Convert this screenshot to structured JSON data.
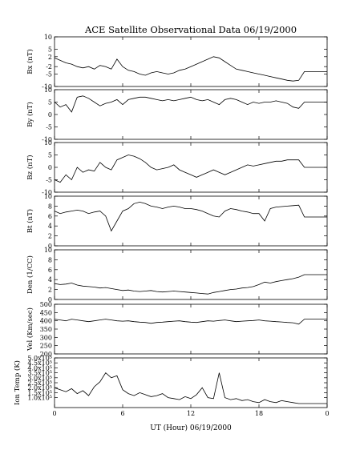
{
  "chart_data": {
    "type": "line",
    "title": "ACE Satellite Observational Data   06/19/2000",
    "xlabel": "UT (Hour)   06/19/2000",
    "x_ticks": [
      "0",
      "6",
      "12",
      "18",
      "0"
    ],
    "xlim": [
      0,
      24
    ],
    "grid": false,
    "panels": [
      {
        "ylabel": "Bx (nT)",
        "ylim": [
          -10,
          10
        ],
        "y_ticks": [
          "-10",
          "-5",
          "-2",
          "2",
          "5",
          "10"
        ],
        "y_tick_values": [
          -10,
          -5,
          -2,
          2,
          5,
          10
        ],
        "series": {
          "x": [
            0,
            0.5,
            1,
            1.5,
            2,
            2.5,
            3,
            3.5,
            4,
            4.5,
            5,
            5.5,
            6,
            6.5,
            7,
            7.5,
            8,
            8.5,
            9,
            9.5,
            10,
            10.5,
            11,
            11.5,
            12,
            12.5,
            13,
            13.5,
            14,
            14.5,
            15,
            15.5,
            16,
            16.5,
            17,
            17.5,
            18,
            18.5,
            19,
            19.5,
            20,
            20.5,
            21,
            21.5,
            22,
            22.5,
            23,
            23.5,
            24
          ],
          "y": [
            1.5,
            0.5,
            -0.5,
            -1,
            -2,
            -2.5,
            -2,
            -3,
            -1.5,
            -2,
            -3,
            1,
            -2,
            -3.5,
            -4,
            -5,
            -5.5,
            -4.5,
            -4,
            -4.5,
            -5,
            -4.5,
            -3.5,
            -3,
            -2,
            -1,
            0,
            1,
            2,
            1.5,
            0,
            -1.5,
            -3,
            -3.5,
            -4,
            -4.5,
            -5,
            -5.5,
            -6,
            -6.5,
            -7,
            -7.5,
            -7.8,
            -7.5,
            -4,
            -4,
            -4,
            -4,
            -4
          ]
        }
      },
      {
        "ylabel": "By (nT)",
        "ylim": [
          -10,
          10
        ],
        "y_ticks": [
          "-10",
          "-5",
          "0",
          "5",
          "10"
        ],
        "y_tick_values": [
          -10,
          -5,
          0,
          5,
          10
        ],
        "series": {
          "x": [
            0,
            0.5,
            1,
            1.5,
            2,
            2.5,
            3,
            3.5,
            4,
            4.5,
            5,
            5.5,
            6,
            6.5,
            7,
            7.5,
            8,
            8.5,
            9,
            9.5,
            10,
            10.5,
            11,
            11.5,
            12,
            12.5,
            13,
            13.5,
            14,
            14.5,
            15,
            15.5,
            16,
            16.5,
            17,
            17.5,
            18,
            18.5,
            19,
            19.5,
            20,
            20.5,
            21,
            21.5,
            22,
            22.5,
            23,
            23.5,
            24
          ],
          "y": [
            5,
            3,
            4,
            1,
            7,
            7.5,
            6.5,
            5,
            3.5,
            4.5,
            5,
            6,
            4,
            6,
            6.5,
            7,
            7,
            6.5,
            6,
            5.5,
            6,
            5.5,
            6,
            6.5,
            7,
            6,
            5.5,
            6,
            5,
            4,
            6,
            6.5,
            6,
            5,
            4,
            5,
            4.5,
            5,
            5,
            5.5,
            5,
            4.5,
            3,
            2.5,
            5,
            5,
            5,
            5,
            5
          ]
        }
      },
      {
        "ylabel": "Bz (nT)",
        "ylim": [
          -10,
          10
        ],
        "y_ticks": [
          "-10",
          "-5",
          "0",
          "5",
          "10"
        ],
        "y_tick_values": [
          -10,
          -5,
          0,
          5,
          10
        ],
        "series": {
          "x": [
            0,
            0.5,
            1,
            1.5,
            2,
            2.5,
            3,
            3.5,
            4,
            4.5,
            5,
            5.5,
            6,
            6.5,
            7,
            7.5,
            8,
            8.5,
            9,
            9.5,
            10,
            10.5,
            11,
            11.5,
            12,
            12.5,
            13,
            13.5,
            14,
            14.5,
            15,
            15.5,
            16,
            16.5,
            17,
            17.5,
            18,
            18.5,
            19,
            19.5,
            20,
            20.5,
            21,
            21.5,
            22,
            22.5,
            23,
            23.5,
            24
          ],
          "y": [
            -5,
            -6,
            -3,
            -5,
            0,
            -2,
            -1,
            -1.5,
            2,
            0,
            -1,
            3,
            4,
            5,
            4.5,
            3.5,
            2,
            0,
            -1,
            -0.5,
            0,
            1,
            -1,
            -2,
            -3,
            -4,
            -3,
            -2,
            -1,
            -2,
            -3,
            -2,
            -1,
            0,
            1,
            0.5,
            1,
            1.5,
            2,
            2.5,
            2.5,
            3,
            3,
            3,
            0,
            0,
            0,
            0,
            0
          ]
        }
      },
      {
        "ylabel": "Bt (nT)",
        "ylim": [
          0,
          10
        ],
        "y_ticks": [
          "0",
          "2",
          "4",
          "6",
          "8",
          "10"
        ],
        "y_tick_values": [
          0,
          2,
          4,
          6,
          8,
          10
        ],
        "series": {
          "x": [
            0,
            0.5,
            1,
            1.5,
            2,
            2.5,
            3,
            3.5,
            4,
            4.5,
            5,
            5.5,
            6,
            6.5,
            7,
            7.5,
            8,
            8.5,
            9,
            9.5,
            10,
            10.5,
            11,
            11.5,
            12,
            12.5,
            13,
            13.5,
            14,
            14.5,
            15,
            15.5,
            16,
            16.5,
            17,
            17.5,
            18,
            18.5,
            19,
            19.5,
            20,
            20.5,
            21,
            21.5,
            22,
            22.5,
            23,
            23.5,
            24
          ],
          "y": [
            7,
            6.5,
            6.8,
            7,
            7.2,
            7,
            6.5,
            6.8,
            7,
            6,
            3,
            5,
            7,
            7.5,
            8.5,
            8.8,
            8.5,
            8,
            7.8,
            7.5,
            7.8,
            8,
            7.8,
            7.5,
            7.5,
            7.3,
            7,
            6.5,
            6,
            5.8,
            7,
            7.5,
            7.3,
            7,
            6.8,
            6.5,
            6.5,
            5,
            7.5,
            7.8,
            7.9,
            8,
            8.1,
            8.2,
            5.8,
            5.8,
            5.8,
            5.8,
            5.8
          ]
        }
      },
      {
        "ylabel": "Den (1/CC)",
        "ylim": [
          0,
          10
        ],
        "y_ticks": [
          "0",
          "2",
          "4",
          "6",
          "8",
          "10"
        ],
        "y_tick_values": [
          0,
          2,
          4,
          6,
          8,
          10
        ],
        "series": {
          "x": [
            0,
            0.5,
            1,
            1.5,
            2,
            2.5,
            3,
            3.5,
            4,
            4.5,
            5,
            5.5,
            6,
            6.5,
            7,
            7.5,
            8,
            8.5,
            9,
            9.5,
            10,
            10.5,
            11,
            11.5,
            12,
            12.5,
            13,
            13.5,
            14,
            14.5,
            15,
            15.5,
            16,
            16.5,
            17,
            17.5,
            18,
            18.5,
            19,
            19.5,
            20,
            20.5,
            21,
            21.5,
            22,
            22.5,
            23,
            23.5,
            24
          ],
          "y": [
            3.2,
            3,
            3.1,
            3.3,
            2.9,
            2.7,
            2.6,
            2.5,
            2.3,
            2.4,
            2.2,
            2,
            1.8,
            1.9,
            1.7,
            1.6,
            1.7,
            1.8,
            1.6,
            1.5,
            1.6,
            1.7,
            1.6,
            1.5,
            1.4,
            1.3,
            1.2,
            1.1,
            1.4,
            1.6,
            1.8,
            2,
            2.1,
            2.3,
            2.4,
            2.6,
            3,
            3.5,
            3.3,
            3.6,
            3.8,
            4,
            4.2,
            4.5,
            5,
            5,
            5,
            5,
            5
          ]
        }
      },
      {
        "ylabel": "Vel (Km/sec)",
        "ylim": [
          200,
          500
        ],
        "y_ticks": [
          "200",
          "250",
          "300",
          "350",
          "400",
          "450",
          "500"
        ],
        "y_tick_values": [
          200,
          250,
          300,
          350,
          400,
          450,
          500
        ],
        "series": {
          "x": [
            0,
            0.5,
            1,
            1.5,
            2,
            2.5,
            3,
            3.5,
            4,
            4.5,
            5,
            5.5,
            6,
            6.5,
            7,
            7.5,
            8,
            8.5,
            9,
            9.5,
            10,
            10.5,
            11,
            11.5,
            12,
            12.5,
            13,
            13.5,
            14,
            14.5,
            15,
            15.5,
            16,
            16.5,
            17,
            17.5,
            18,
            18.5,
            19,
            19.5,
            20,
            20.5,
            21,
            21.5,
            22,
            22.5,
            23,
            23.5,
            24
          ],
          "y": [
            410,
            405,
            400,
            410,
            405,
            400,
            395,
            400,
            405,
            410,
            405,
            400,
            398,
            400,
            395,
            392,
            390,
            385,
            390,
            392,
            395,
            398,
            400,
            395,
            392,
            390,
            395,
            400,
            398,
            402,
            405,
            400,
            395,
            398,
            400,
            402,
            405,
            400,
            398,
            395,
            393,
            390,
            388,
            380,
            410,
            410,
            410,
            410,
            410
          ]
        }
      },
      {
        "ylabel": "Ion Temp (K)",
        "ylim": [
          0,
          500000
        ],
        "y_ticks": [
          "1.0x10⁵",
          "1.5x10⁵",
          "2.0x10⁵",
          "2.5x10⁵",
          "3.0x10⁵",
          "3.5x10⁵",
          "4.0x10⁵",
          "4.5x10⁵",
          "5.0x10⁵"
        ],
        "y_tick_values": [
          100000,
          150000,
          200000,
          250000,
          300000,
          350000,
          400000,
          450000,
          500000
        ],
        "series": {
          "x": [
            0,
            0.5,
            1,
            1.5,
            2,
            2.5,
            3,
            3.5,
            4,
            4.5,
            5,
            5.5,
            6,
            6.5,
            7,
            7.5,
            8,
            8.5,
            9,
            9.5,
            10,
            10.5,
            11,
            11.5,
            12,
            12.5,
            13,
            13.5,
            14,
            14.5,
            15,
            15.5,
            16,
            16.5,
            17,
            17.5,
            18,
            18.5,
            19,
            19.5,
            20,
            20.5,
            21,
            21.5,
            22,
            22.5,
            23,
            23.5,
            24
          ],
          "y": [
            200000,
            180000,
            160000,
            190000,
            140000,
            170000,
            120000,
            210000,
            260000,
            350000,
            300000,
            320000,
            180000,
            140000,
            120000,
            150000,
            130000,
            110000,
            120000,
            140000,
            100000,
            90000,
            80000,
            110000,
            90000,
            130000,
            200000,
            100000,
            90000,
            350000,
            100000,
            80000,
            90000,
            70000,
            80000,
            60000,
            50000,
            80000,
            60000,
            50000,
            70000,
            60000,
            50000,
            40000,
            40000,
            40000,
            40000,
            40000,
            40000
          ]
        }
      }
    ]
  }
}
